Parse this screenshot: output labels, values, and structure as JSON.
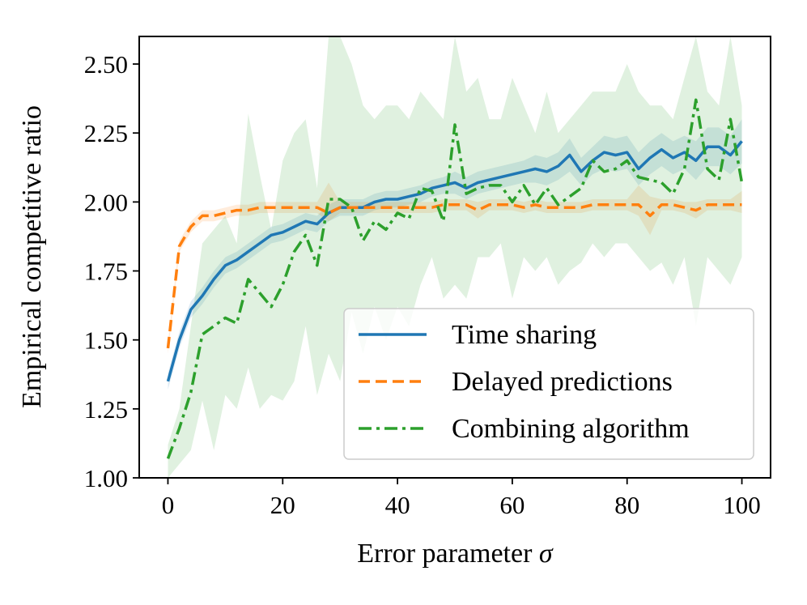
{
  "chart_data": {
    "type": "line",
    "title": "",
    "xlabel": "Error parameter",
    "xlabel_symbol": "σ",
    "ylabel": "Empirical competitive ratio",
    "xlim": [
      -5,
      105
    ],
    "ylim": [
      1.0,
      2.6
    ],
    "x_ticks": [
      0,
      20,
      40,
      60,
      80,
      100
    ],
    "x_tick_labels": [
      "0",
      "20",
      "40",
      "60",
      "80",
      "100"
    ],
    "y_ticks": [
      1.0,
      1.25,
      1.5,
      1.75,
      2.0,
      2.25,
      2.5
    ],
    "y_tick_labels": [
      "1.00",
      "1.25",
      "1.50",
      "1.75",
      "2.00",
      "2.25",
      "2.50"
    ],
    "grid": false,
    "legend_position": "lower-right",
    "x": [
      0,
      2,
      4,
      6,
      8,
      10,
      12,
      14,
      16,
      18,
      20,
      22,
      24,
      26,
      28,
      30,
      32,
      34,
      36,
      38,
      40,
      42,
      44,
      46,
      48,
      50,
      52,
      54,
      56,
      58,
      60,
      62,
      64,
      66,
      68,
      70,
      72,
      74,
      76,
      78,
      80,
      82,
      84,
      86,
      88,
      90,
      92,
      94,
      96,
      98,
      100
    ],
    "series": [
      {
        "name": "Time sharing",
        "color": "#1f77b4",
        "style": "solid",
        "values": [
          1.35,
          1.5,
          1.61,
          1.66,
          1.72,
          1.77,
          1.79,
          1.82,
          1.85,
          1.88,
          1.89,
          1.91,
          1.93,
          1.92,
          1.96,
          1.98,
          1.98,
          1.98,
          2.0,
          2.01,
          2.01,
          2.02,
          2.03,
          2.05,
          2.06,
          2.07,
          2.05,
          2.07,
          2.08,
          2.09,
          2.1,
          2.11,
          2.12,
          2.11,
          2.13,
          2.17,
          2.11,
          2.15,
          2.18,
          2.17,
          2.18,
          2.12,
          2.16,
          2.19,
          2.16,
          2.18,
          2.15,
          2.2,
          2.2,
          2.17,
          2.22
        ],
        "band_lower": [
          1.32,
          1.47,
          1.58,
          1.63,
          1.69,
          1.74,
          1.76,
          1.79,
          1.82,
          1.85,
          1.86,
          1.88,
          1.9,
          1.89,
          1.93,
          1.95,
          1.95,
          1.95,
          1.97,
          1.98,
          1.98,
          1.99,
          2.0,
          2.02,
          2.03,
          2.03,
          2.01,
          2.03,
          2.04,
          2.05,
          2.06,
          2.07,
          2.07,
          2.06,
          2.08,
          2.11,
          2.06,
          2.1,
          2.12,
          2.11,
          2.12,
          2.06,
          2.1,
          2.13,
          2.1,
          2.12,
          2.08,
          2.13,
          2.13,
          2.1,
          2.14
        ],
        "band_upper": [
          1.38,
          1.53,
          1.64,
          1.69,
          1.75,
          1.8,
          1.82,
          1.85,
          1.88,
          1.91,
          1.92,
          1.94,
          1.96,
          1.95,
          1.99,
          2.01,
          2.01,
          2.01,
          2.03,
          2.04,
          2.04,
          2.05,
          2.06,
          2.08,
          2.09,
          2.11,
          2.09,
          2.11,
          2.12,
          2.13,
          2.14,
          2.15,
          2.17,
          2.16,
          2.18,
          2.23,
          2.16,
          2.2,
          2.24,
          2.23,
          2.24,
          2.18,
          2.22,
          2.25,
          2.22,
          2.24,
          2.22,
          2.27,
          2.27,
          2.24,
          2.3
        ]
      },
      {
        "name": "Delayed predictions",
        "color": "#ff7f0e",
        "style": "dashed",
        "values": [
          1.47,
          1.84,
          1.91,
          1.95,
          1.95,
          1.96,
          1.97,
          1.97,
          1.98,
          1.98,
          1.98,
          1.98,
          1.98,
          1.98,
          1.96,
          1.98,
          1.98,
          1.98,
          1.98,
          1.98,
          1.98,
          1.98,
          1.98,
          1.98,
          1.99,
          1.99,
          1.99,
          1.97,
          1.99,
          1.99,
          1.99,
          1.98,
          1.99,
          1.98,
          1.98,
          1.98,
          1.98,
          1.99,
          1.99,
          1.99,
          1.99,
          1.99,
          1.95,
          1.99,
          1.99,
          1.98,
          1.97,
          1.99,
          1.99,
          1.99,
          1.99
        ],
        "band_lower": [
          1.45,
          1.82,
          1.89,
          1.93,
          1.93,
          1.94,
          1.95,
          1.95,
          1.96,
          1.96,
          1.96,
          1.96,
          1.96,
          1.96,
          1.93,
          1.96,
          1.96,
          1.96,
          1.96,
          1.96,
          1.96,
          1.96,
          1.96,
          1.96,
          1.97,
          1.97,
          1.97,
          1.94,
          1.97,
          1.97,
          1.97,
          1.96,
          1.97,
          1.96,
          1.96,
          1.96,
          1.96,
          1.97,
          1.97,
          1.97,
          1.97,
          1.95,
          1.88,
          1.97,
          1.97,
          1.96,
          1.94,
          1.97,
          1.97,
          1.97,
          1.96
        ],
        "band_upper": [
          1.49,
          1.86,
          1.93,
          1.97,
          1.97,
          1.98,
          1.99,
          1.99,
          2.0,
          2.0,
          2.0,
          2.0,
          2.0,
          2.0,
          2.07,
          2.0,
          2.0,
          2.0,
          2.0,
          2.0,
          2.0,
          2.0,
          2.0,
          2.0,
          2.01,
          2.01,
          2.01,
          2.0,
          2.01,
          2.01,
          2.01,
          2.0,
          2.01,
          2.0,
          2.0,
          2.0,
          2.0,
          2.01,
          2.01,
          2.01,
          2.01,
          2.06,
          2.02,
          2.01,
          2.01,
          2.0,
          2.0,
          2.01,
          2.01,
          2.01,
          2.04
        ]
      },
      {
        "name": "Combining algorithm",
        "color": "#2ca02c",
        "style": "dashdot",
        "values": [
          1.07,
          1.18,
          1.31,
          1.52,
          1.55,
          1.58,
          1.56,
          1.72,
          1.67,
          1.62,
          1.7,
          1.82,
          1.88,
          1.77,
          2.01,
          2.01,
          1.98,
          1.86,
          1.93,
          1.9,
          1.96,
          1.94,
          2.05,
          2.04,
          1.93,
          2.28,
          2.03,
          2.05,
          2.06,
          2.06,
          2.0,
          2.06,
          1.99,
          2.05,
          1.99,
          2.02,
          2.05,
          2.15,
          2.11,
          2.12,
          2.15,
          2.09,
          2.08,
          2.07,
          2.03,
          2.12,
          2.37,
          2.12,
          2.08,
          2.3,
          2.07
        ],
        "band_lower": [
          1.0,
          1.05,
          1.1,
          1.28,
          1.1,
          1.3,
          1.25,
          1.4,
          1.25,
          1.3,
          1.28,
          1.35,
          1.55,
          1.3,
          1.45,
          1.35,
          1.6,
          1.45,
          1.62,
          1.5,
          1.62,
          1.55,
          1.7,
          1.8,
          1.65,
          1.7,
          1.65,
          1.8,
          1.8,
          1.85,
          1.65,
          1.8,
          1.75,
          1.8,
          1.7,
          1.75,
          1.78,
          1.85,
          1.8,
          1.85,
          1.85,
          1.8,
          1.75,
          1.78,
          1.7,
          1.8,
          1.55,
          1.8,
          1.75,
          1.7,
          1.8
        ],
        "band_upper": [
          1.12,
          1.25,
          1.55,
          1.85,
          1.9,
          1.95,
          1.85,
          2.32,
          2.1,
          1.9,
          2.15,
          2.25,
          2.3,
          2.05,
          2.6,
          2.6,
          2.5,
          2.35,
          2.3,
          2.35,
          2.35,
          2.3,
          2.4,
          2.35,
          2.3,
          2.6,
          2.4,
          2.45,
          2.3,
          2.3,
          2.45,
          2.35,
          2.25,
          2.4,
          2.25,
          2.3,
          2.35,
          2.4,
          2.4,
          2.4,
          2.5,
          2.4,
          2.35,
          2.35,
          2.3,
          2.45,
          2.6,
          2.4,
          2.35,
          2.6,
          2.35
        ]
      }
    ]
  }
}
